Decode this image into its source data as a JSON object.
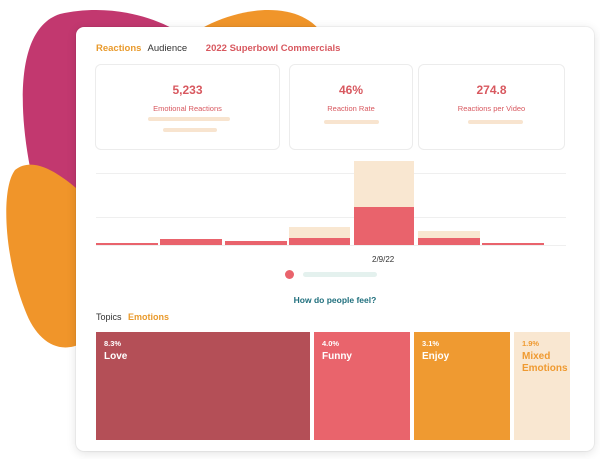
{
  "header": {
    "tabs": [
      "Reactions",
      "Audience"
    ],
    "title": "2022 Superbowl Commercials"
  },
  "stats": [
    {
      "value": "5,233",
      "label": "Emotional Reactions"
    },
    {
      "value": "46%",
      "label": "Reaction Rate"
    },
    {
      "value": "274.8",
      "label": "Reactions per Video"
    }
  ],
  "timeline": {
    "date_label": "2/9/22"
  },
  "feelings": {
    "question": "How do people feel?",
    "tabs": [
      "Topics",
      "Emotions"
    ],
    "tiles": [
      {
        "pct": "8.3%",
        "name": "Love"
      },
      {
        "pct": "4.0%",
        "name": "Funny"
      },
      {
        "pct": "3.1%",
        "name": "Enjoy"
      },
      {
        "pct": "1.9%",
        "name": "Mixed Emotions"
      }
    ]
  },
  "colors": {
    "accent_red": "#d8585f",
    "accent_orange": "#e99a2c",
    "love": "#b44f57",
    "funny": "#e9646c",
    "enjoy": "#ef9a31",
    "mixed": "#f9e7d1",
    "blob_magenta": "#c2386f",
    "blob_orange": "#f0952a"
  }
}
